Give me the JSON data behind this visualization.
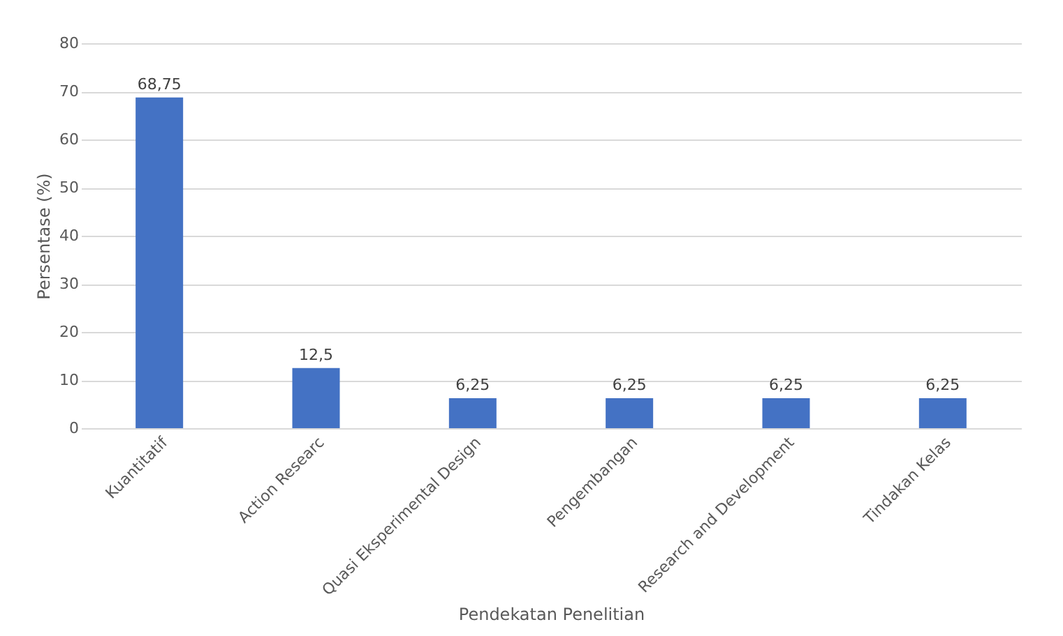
{
  "chart_data": {
    "type": "bar",
    "categories": [
      "Kuantitatif",
      "Action Researc",
      "Quasi  Eksperimental Design",
      "Pengembangan",
      "Research and Development",
      "Tindakan Kelas"
    ],
    "values": [
      68.75,
      12.5,
      6.25,
      6.25,
      6.25,
      6.25
    ],
    "value_labels": [
      "68,75",
      "12,5",
      "6,25",
      "6,25",
      "6,25",
      "6,25"
    ],
    "color": "#4472c4",
    "xlabel": "Pendekatan Penelitian",
    "ylabel": "Persentase (%)",
    "ylim": [
      0,
      80
    ],
    "yticks": [
      0,
      10,
      20,
      30,
      40,
      50,
      60,
      70,
      80
    ],
    "grid": "y"
  }
}
